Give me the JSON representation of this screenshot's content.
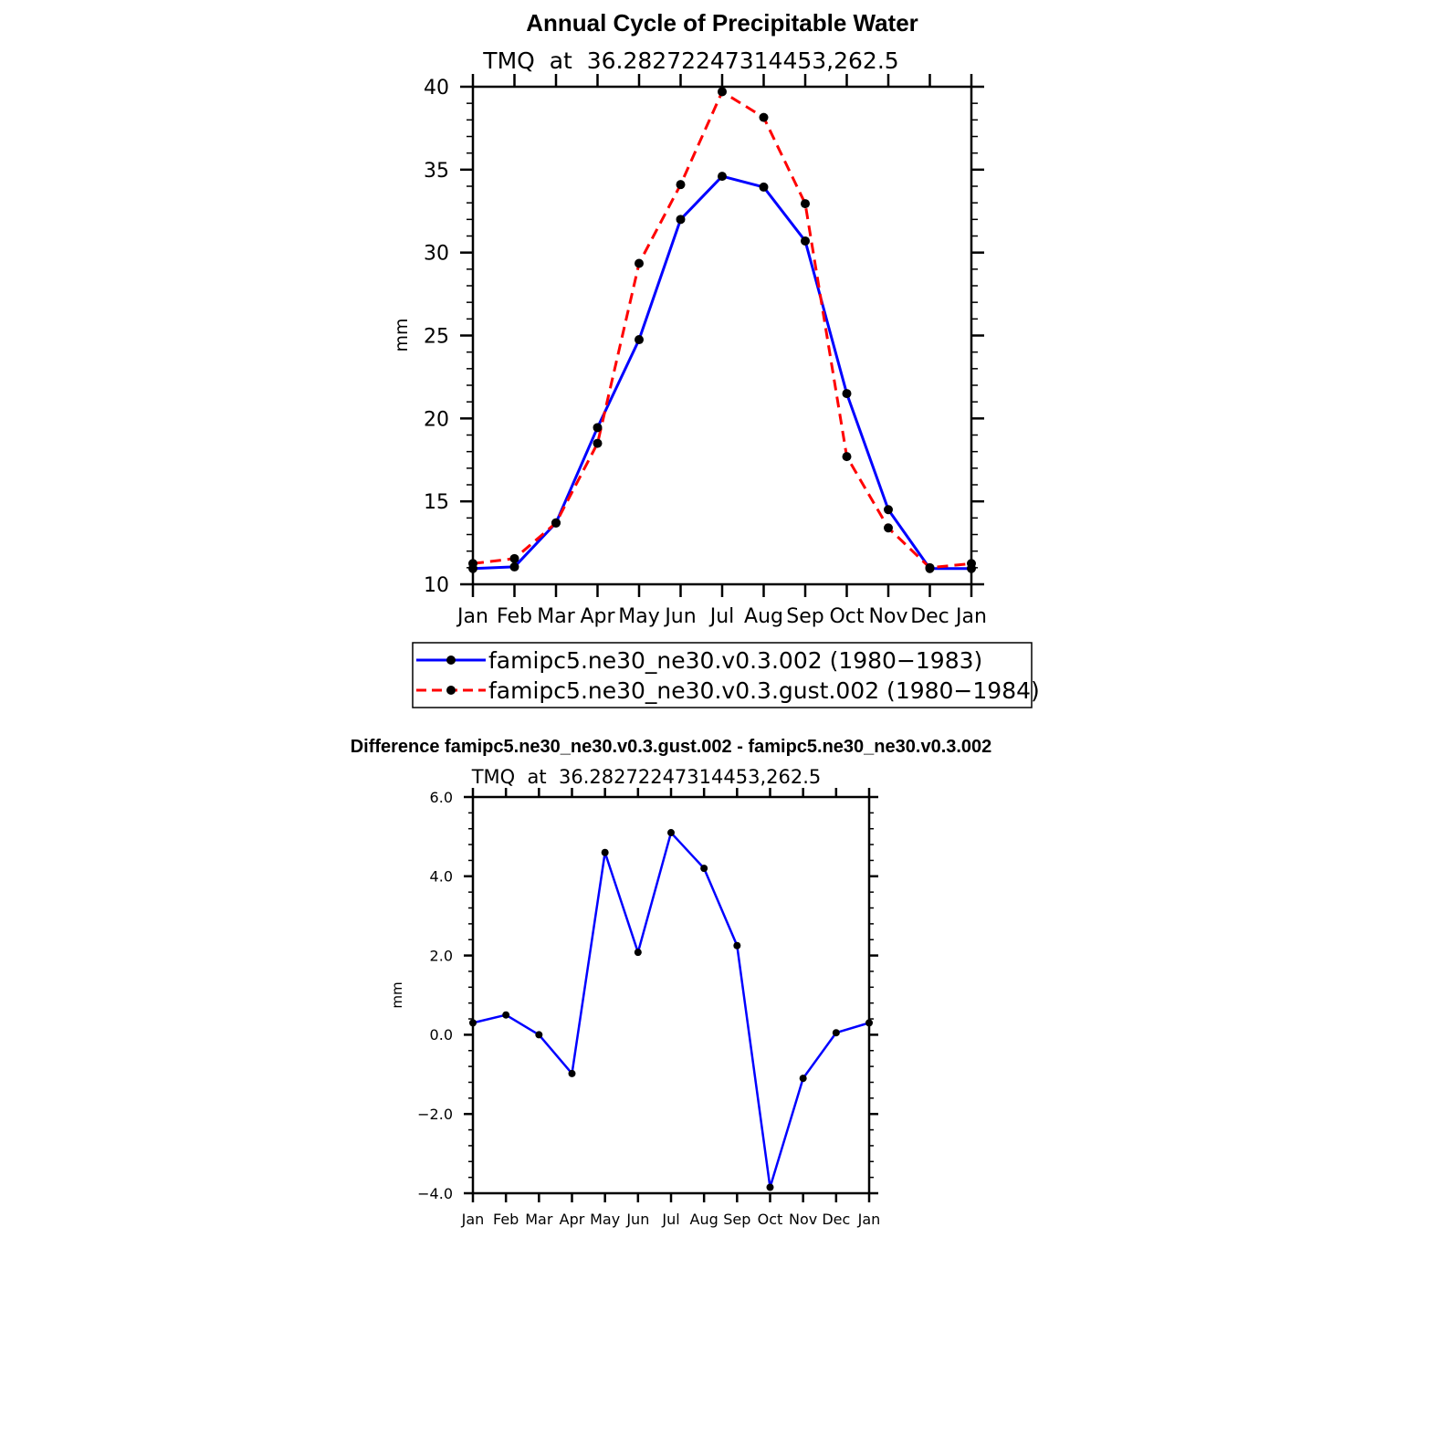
{
  "chart_data": [
    {
      "type": "line",
      "title": "Annual Cycle of Precipitable Water",
      "subtitle": "TMQ  at  36.28272247314453,262.5",
      "xlabel": "",
      "ylabel": "mm",
      "categories": [
        "Jan",
        "Feb",
        "Mar",
        "Apr",
        "May",
        "Jun",
        "Jul",
        "Aug",
        "Sep",
        "Oct",
        "Nov",
        "Dec",
        "Jan"
      ],
      "ylim": [
        10,
        40
      ],
      "yticks": [
        10,
        15,
        20,
        25,
        30,
        35,
        40
      ],
      "ytick_labels": [
        "10",
        "15",
        "20",
        "25",
        "30",
        "35",
        "40"
      ],
      "series": [
        {
          "name": "famipc5.ne30_ne30.v0.3.002 (1980−1983)",
          "color": "#0000ff",
          "dash": "solid",
          "values": [
            10.95,
            11.05,
            13.7,
            19.45,
            24.75,
            32.0,
            34.6,
            33.95,
            30.7,
            21.5,
            14.5,
            10.95,
            10.95
          ]
        },
        {
          "name": "famipc5.ne30_ne30.v0.3.gust.002 (1980−1984)",
          "color": "#ff0000",
          "dash": "dashed",
          "values": [
            11.25,
            11.55,
            13.7,
            18.5,
            29.35,
            34.1,
            39.7,
            38.15,
            32.95,
            17.7,
            13.4,
            11.0,
            11.25
          ]
        }
      ],
      "legend": "bottom"
    },
    {
      "type": "line",
      "title": "Difference famipc5.ne30_ne30.v0.3.gust.002 - famipc5.ne30_ne30.v0.3.002",
      "subtitle": "TMQ  at  36.28272247314453,262.5",
      "xlabel": "",
      "ylabel": "mm",
      "categories": [
        "Jan",
        "Feb",
        "Mar",
        "Apr",
        "May",
        "Jun",
        "Jul",
        "Aug",
        "Sep",
        "Oct",
        "Nov",
        "Dec",
        "Jan"
      ],
      "ylim": [
        -4.0,
        6.0
      ],
      "yticks": [
        -4,
        -2,
        0,
        2,
        4,
        6
      ],
      "ytick_labels": [
        "−4.0",
        "−2.0",
        "0.0",
        "2.0",
        "4.0",
        "6.0"
      ],
      "series": [
        {
          "name": "difference",
          "color": "#0000ff",
          "dash": "solid",
          "values": [
            0.3,
            0.5,
            0.0,
            -0.98,
            4.6,
            2.08,
            5.1,
            4.2,
            2.25,
            -3.85,
            -1.1,
            0.05,
            0.3
          ]
        }
      ]
    }
  ]
}
